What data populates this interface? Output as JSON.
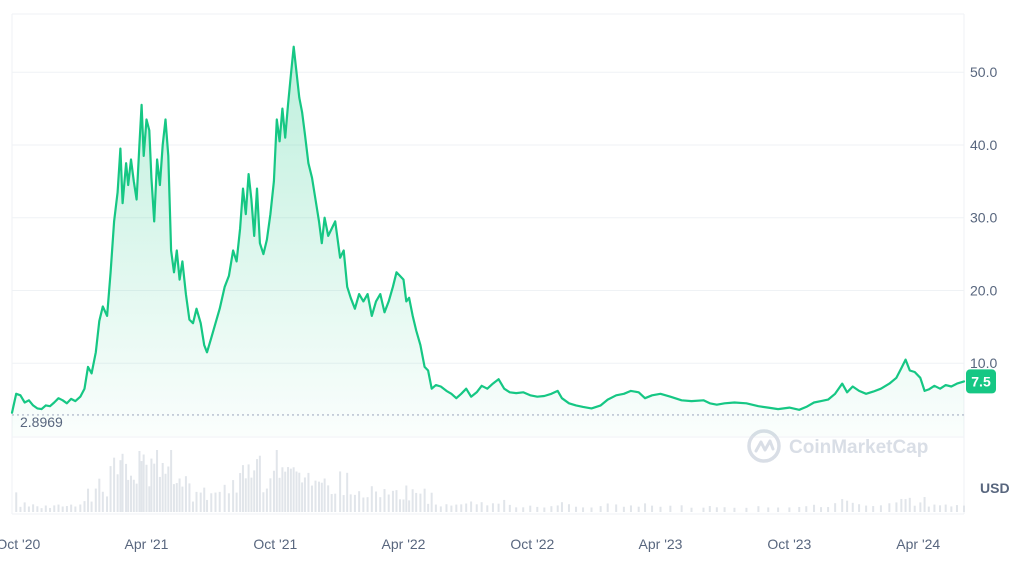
{
  "colors": {
    "line": "#16c784",
    "area_top": "#16c784",
    "grid": "#eff2f5",
    "axis_text": "#58667e",
    "baseline": "#a6b0c3",
    "volume": "#e1e5ea"
  },
  "watermark": {
    "text": "CoinMarketCap",
    "icon": "coinmarketcap-logo-icon"
  },
  "currency": "USD",
  "current_price_label": "7.5",
  "baseline_label": "2.8969",
  "chart_data": {
    "type": "area",
    "title": "",
    "xlabel": "",
    "ylabel": "",
    "ylim": [
      0,
      58
    ],
    "yticks": [
      10,
      20,
      30,
      40,
      50
    ],
    "ytick_labels": [
      "10.0",
      "20.0",
      "30.0",
      "40.0",
      "50.0"
    ],
    "xticks": [
      "2020-10-01",
      "2021-04-01",
      "2021-10-01",
      "2022-04-01",
      "2022-10-01",
      "2023-04-01",
      "2023-10-01",
      "2024-04-01"
    ],
    "xtick_labels": [
      "Oct '20",
      "Apr '21",
      "Oct '21",
      "Apr '22",
      "Oct '22",
      "Apr '23",
      "Oct '23",
      "Apr '24"
    ],
    "xrange": [
      "2020-09-22",
      "2024-06-05"
    ],
    "baseline": 2.8969,
    "last_value": 7.5,
    "series": [
      {
        "points": [
          [
            "2020-09-22",
            3.2
          ],
          [
            "2020-09-28",
            5.8
          ],
          [
            "2020-10-04",
            5.6
          ],
          [
            "2020-10-10",
            4.6
          ],
          [
            "2020-10-16",
            4.9
          ],
          [
            "2020-10-22",
            4.2
          ],
          [
            "2020-10-28",
            3.8
          ],
          [
            "2020-11-03",
            3.7
          ],
          [
            "2020-11-09",
            4.2
          ],
          [
            "2020-11-15",
            4.1
          ],
          [
            "2020-11-21",
            4.6
          ],
          [
            "2020-11-27",
            5.2
          ],
          [
            "2020-12-03",
            4.9
          ],
          [
            "2020-12-09",
            4.5
          ],
          [
            "2020-12-15",
            5.1
          ],
          [
            "2020-12-21",
            4.8
          ],
          [
            "2020-12-28",
            5.4
          ],
          [
            "2021-01-03",
            6.5
          ],
          [
            "2021-01-08",
            9.5
          ],
          [
            "2021-01-13",
            8.6
          ],
          [
            "2021-01-19",
            11.5
          ],
          [
            "2021-01-24",
            15.8
          ],
          [
            "2021-01-29",
            17.8
          ],
          [
            "2021-02-04",
            16.5
          ],
          [
            "2021-02-09",
            22.5
          ],
          [
            "2021-02-14",
            29.5
          ],
          [
            "2021-02-19",
            33.5
          ],
          [
            "2021-02-23",
            39.5
          ],
          [
            "2021-02-26",
            32.0
          ],
          [
            "2021-03-03",
            37.5
          ],
          [
            "2021-03-06",
            34.5
          ],
          [
            "2021-03-10",
            38.0
          ],
          [
            "2021-03-14",
            35.0
          ],
          [
            "2021-03-18",
            32.5
          ],
          [
            "2021-03-22",
            40.0
          ],
          [
            "2021-03-25",
            45.5
          ],
          [
            "2021-03-28",
            38.5
          ],
          [
            "2021-04-01",
            43.5
          ],
          [
            "2021-04-05",
            42.0
          ],
          [
            "2021-04-08",
            35.5
          ],
          [
            "2021-04-12",
            29.5
          ],
          [
            "2021-04-16",
            38.0
          ],
          [
            "2021-04-20",
            34.5
          ],
          [
            "2021-04-24",
            40.0
          ],
          [
            "2021-04-28",
            43.5
          ],
          [
            "2021-05-02",
            38.5
          ],
          [
            "2021-05-06",
            25.5
          ],
          [
            "2021-05-10",
            22.5
          ],
          [
            "2021-05-14",
            25.5
          ],
          [
            "2021-05-18",
            21.5
          ],
          [
            "2021-05-22",
            24.0
          ],
          [
            "2021-05-27",
            19.5
          ],
          [
            "2021-06-01",
            16.0
          ],
          [
            "2021-06-06",
            15.5
          ],
          [
            "2021-06-11",
            17.5
          ],
          [
            "2021-06-17",
            15.5
          ],
          [
            "2021-06-22",
            12.5
          ],
          [
            "2021-06-26",
            11.5
          ],
          [
            "2021-07-02",
            13.5
          ],
          [
            "2021-07-08",
            15.5
          ],
          [
            "2021-07-14",
            17.5
          ],
          [
            "2021-07-21",
            20.5
          ],
          [
            "2021-07-27",
            22.0
          ],
          [
            "2021-08-02",
            25.5
          ],
          [
            "2021-08-07",
            24.0
          ],
          [
            "2021-08-12",
            28.5
          ],
          [
            "2021-08-16",
            34.0
          ],
          [
            "2021-08-20",
            30.5
          ],
          [
            "2021-08-24",
            36.0
          ],
          [
            "2021-08-28",
            32.5
          ],
          [
            "2021-09-01",
            27.5
          ],
          [
            "2021-09-05",
            34.0
          ],
          [
            "2021-09-09",
            26.5
          ],
          [
            "2021-09-14",
            25.0
          ],
          [
            "2021-09-19",
            27.0
          ],
          [
            "2021-09-24",
            30.5
          ],
          [
            "2021-09-29",
            35.0
          ],
          [
            "2021-10-03",
            43.5
          ],
          [
            "2021-10-07",
            40.5
          ],
          [
            "2021-10-11",
            45.0
          ],
          [
            "2021-10-15",
            41.0
          ],
          [
            "2021-10-19",
            45.5
          ],
          [
            "2021-10-23",
            49.5
          ],
          [
            "2021-10-27",
            53.5
          ],
          [
            "2021-10-31",
            50.0
          ],
          [
            "2021-11-04",
            46.5
          ],
          [
            "2021-11-08",
            44.5
          ],
          [
            "2021-11-12",
            41.5
          ],
          [
            "2021-11-17",
            37.5
          ],
          [
            "2021-11-22",
            35.5
          ],
          [
            "2021-11-27",
            32.5
          ],
          [
            "2021-12-02",
            29.5
          ],
          [
            "2021-12-06",
            26.5
          ],
          [
            "2021-12-10",
            30.0
          ],
          [
            "2021-12-15",
            27.5
          ],
          [
            "2021-12-20",
            28.5
          ],
          [
            "2021-12-25",
            29.5
          ],
          [
            "2022-01-01",
            24.5
          ],
          [
            "2022-01-06",
            25.5
          ],
          [
            "2022-01-11",
            20.5
          ],
          [
            "2022-01-16",
            19.0
          ],
          [
            "2022-01-22",
            17.5
          ],
          [
            "2022-01-28",
            19.5
          ],
          [
            "2022-02-03",
            18.5
          ],
          [
            "2022-02-09",
            19.5
          ],
          [
            "2022-02-15",
            16.5
          ],
          [
            "2022-02-21",
            18.5
          ],
          [
            "2022-02-27",
            19.5
          ],
          [
            "2022-03-05",
            17.0
          ],
          [
            "2022-03-11",
            18.5
          ],
          [
            "2022-03-17",
            20.5
          ],
          [
            "2022-03-22",
            22.5
          ],
          [
            "2022-03-27",
            22.0
          ],
          [
            "2022-04-01",
            21.5
          ],
          [
            "2022-04-05",
            18.5
          ],
          [
            "2022-04-09",
            19.0
          ],
          [
            "2022-04-14",
            16.5
          ],
          [
            "2022-04-19",
            14.5
          ],
          [
            "2022-04-25",
            12.5
          ],
          [
            "2022-05-01",
            9.5
          ],
          [
            "2022-05-06",
            9.0
          ],
          [
            "2022-05-11",
            6.5
          ],
          [
            "2022-05-17",
            7.0
          ],
          [
            "2022-05-24",
            6.8
          ],
          [
            "2022-06-01",
            6.2
          ],
          [
            "2022-06-08",
            5.8
          ],
          [
            "2022-06-15",
            5.2
          ],
          [
            "2022-06-22",
            5.8
          ],
          [
            "2022-06-29",
            6.5
          ],
          [
            "2022-07-06",
            5.4
          ],
          [
            "2022-07-14",
            6.0
          ],
          [
            "2022-07-21",
            6.9
          ],
          [
            "2022-07-29",
            6.5
          ],
          [
            "2022-08-06",
            7.2
          ],
          [
            "2022-08-14",
            7.8
          ],
          [
            "2022-08-22",
            6.5
          ],
          [
            "2022-08-30",
            6.0
          ],
          [
            "2022-09-08",
            5.9
          ],
          [
            "2022-09-18",
            6.0
          ],
          [
            "2022-09-28",
            5.6
          ],
          [
            "2022-10-08",
            5.4
          ],
          [
            "2022-10-18",
            5.5
          ],
          [
            "2022-10-28",
            5.8
          ],
          [
            "2022-11-06",
            6.2
          ],
          [
            "2022-11-12",
            5.2
          ],
          [
            "2022-11-22",
            4.5
          ],
          [
            "2022-12-02",
            4.2
          ],
          [
            "2022-12-12",
            4.0
          ],
          [
            "2022-12-24",
            3.8
          ],
          [
            "2023-01-06",
            4.2
          ],
          [
            "2023-01-16",
            5.0
          ],
          [
            "2023-01-28",
            5.6
          ],
          [
            "2023-02-08",
            5.8
          ],
          [
            "2023-02-18",
            6.2
          ],
          [
            "2023-03-01",
            6.0
          ],
          [
            "2023-03-10",
            5.2
          ],
          [
            "2023-03-20",
            5.6
          ],
          [
            "2023-04-01",
            5.8
          ],
          [
            "2023-04-15",
            5.4
          ],
          [
            "2023-05-01",
            4.9
          ],
          [
            "2023-05-15",
            4.8
          ],
          [
            "2023-06-01",
            4.9
          ],
          [
            "2023-06-10",
            4.5
          ],
          [
            "2023-06-20",
            4.3
          ],
          [
            "2023-07-01",
            4.5
          ],
          [
            "2023-07-15",
            4.6
          ],
          [
            "2023-08-01",
            4.5
          ],
          [
            "2023-08-18",
            4.1
          ],
          [
            "2023-09-01",
            3.9
          ],
          [
            "2023-09-15",
            3.7
          ],
          [
            "2023-10-01",
            3.9
          ],
          [
            "2023-10-15",
            3.6
          ],
          [
            "2023-10-25",
            4.0
          ],
          [
            "2023-11-05",
            4.6
          ],
          [
            "2023-11-15",
            4.8
          ],
          [
            "2023-11-25",
            5.0
          ],
          [
            "2023-12-05",
            5.8
          ],
          [
            "2023-12-15",
            7.2
          ],
          [
            "2023-12-22",
            6.0
          ],
          [
            "2023-12-30",
            6.8
          ],
          [
            "2024-01-08",
            6.2
          ],
          [
            "2024-01-18",
            5.8
          ],
          [
            "2024-01-28",
            6.1
          ],
          [
            "2024-02-08",
            6.5
          ],
          [
            "2024-02-20",
            7.2
          ],
          [
            "2024-03-01",
            8.0
          ],
          [
            "2024-03-08",
            9.3
          ],
          [
            "2024-03-14",
            10.5
          ],
          [
            "2024-03-20",
            9.0
          ],
          [
            "2024-03-27",
            8.8
          ],
          [
            "2024-04-04",
            8.0
          ],
          [
            "2024-04-10",
            6.2
          ],
          [
            "2024-04-16",
            6.4
          ],
          [
            "2024-04-24",
            6.9
          ],
          [
            "2024-05-02",
            6.5
          ],
          [
            "2024-05-10",
            7.0
          ],
          [
            "2024-05-18",
            6.8
          ],
          [
            "2024-05-26",
            7.2
          ],
          [
            "2024-06-05",
            7.5
          ]
        ]
      }
    ]
  }
}
